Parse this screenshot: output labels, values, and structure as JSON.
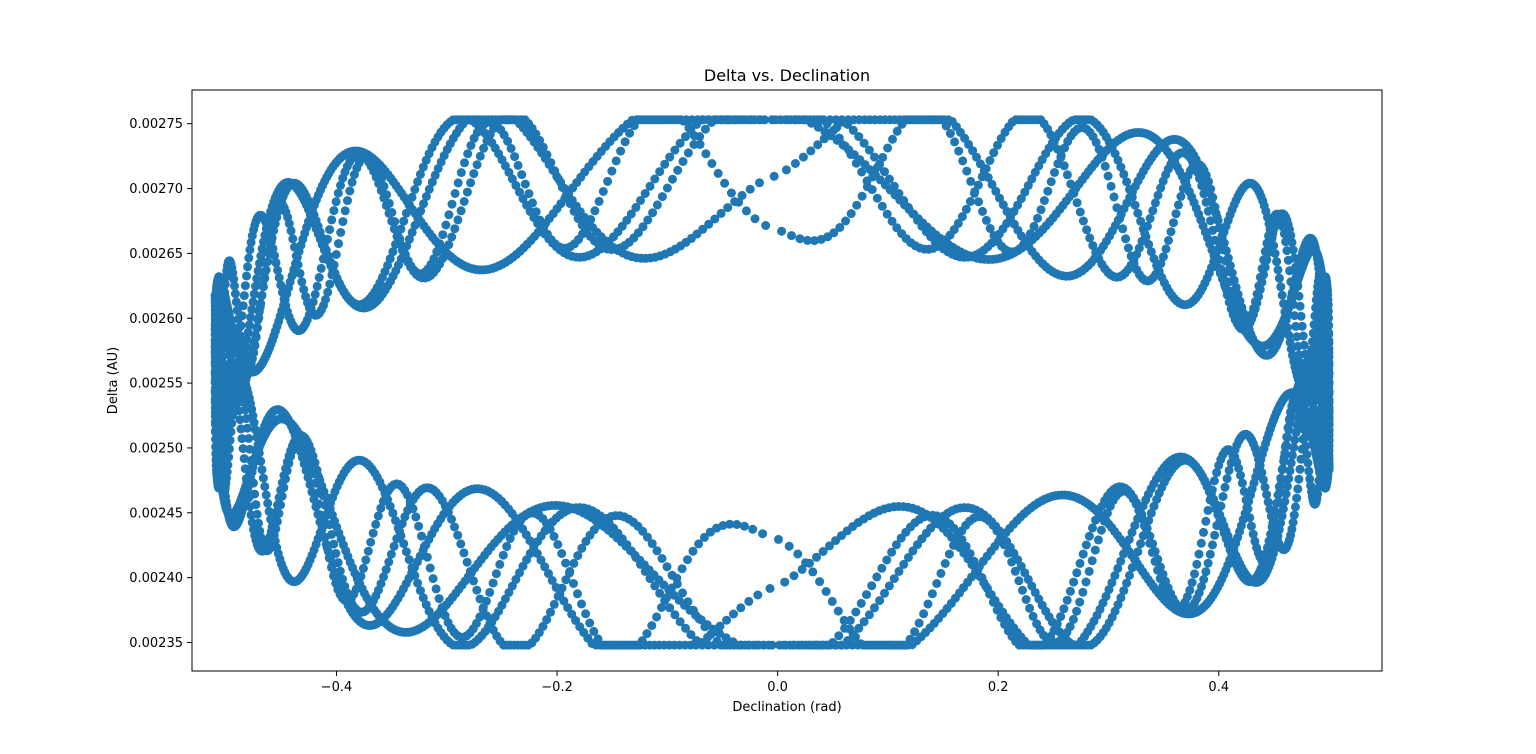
{
  "chart_data": {
    "type": "scatter",
    "title": "Delta vs. Declination",
    "xlabel": "Declination (rad)",
    "ylabel": "Delta (AU)",
    "xlim": [
      -0.531,
      0.548
    ],
    "ylim": [
      0.002328,
      0.002776
    ],
    "xticks": [
      {
        "value": -0.4,
        "label": "−0.4"
      },
      {
        "value": -0.2,
        "label": "−0.2"
      },
      {
        "value": 0.0,
        "label": "0.0"
      },
      {
        "value": 0.2,
        "label": "0.2"
      },
      {
        "value": 0.4,
        "label": "0.4"
      }
    ],
    "yticks": [
      {
        "value": 0.00235,
        "label": "0.00235"
      },
      {
        "value": 0.0024,
        "label": "0.00240"
      },
      {
        "value": 0.00245,
        "label": "0.00245"
      },
      {
        "value": 0.0025,
        "label": "0.00250"
      },
      {
        "value": 0.00255,
        "label": "0.00255"
      },
      {
        "value": 0.0026,
        "label": "0.00260"
      },
      {
        "value": 0.00265,
        "label": "0.00265"
      },
      {
        "value": 0.0027,
        "label": "0.00270"
      },
      {
        "value": 0.00275,
        "label": "0.00275"
      }
    ],
    "grid": false,
    "series": [
      {
        "color": "#1f77b4",
        "x_range": [
          -0.51,
          0.5
        ],
        "y_range": [
          0.002348,
          0.002753
        ],
        "description_points": [
          [
            -0.505,
            0.00255
          ],
          [
            -0.48,
            0.00262
          ],
          [
            -0.45,
            0.00267
          ],
          [
            -0.4,
            0.0027
          ],
          [
            -0.32,
            0.00273
          ],
          [
            -0.2,
            0.00275
          ],
          [
            -0.1,
            0.00275
          ],
          [
            0.0,
            0.00274
          ],
          [
            0.1,
            0.00274
          ],
          [
            0.2,
            0.00273
          ],
          [
            0.3,
            0.00272
          ],
          [
            0.4,
            0.0027
          ],
          [
            0.47,
            0.00266
          ],
          [
            0.5,
            0.00255
          ],
          [
            0.47,
            0.00245
          ],
          [
            0.4,
            0.00241
          ],
          [
            0.3,
            0.00238
          ],
          [
            0.16,
            0.00235
          ],
          [
            0.0,
            0.00236
          ],
          [
            -0.1,
            0.00236
          ],
          [
            -0.25,
            0.00237
          ],
          [
            -0.35,
            0.00239
          ],
          [
            -0.45,
            0.00243
          ],
          [
            -0.49,
            0.00248
          ]
        ]
      }
    ]
  }
}
